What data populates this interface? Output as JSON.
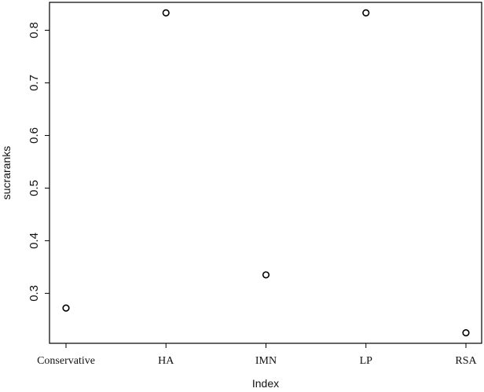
{
  "chart_data": {
    "type": "scatter",
    "xlabel": "Index",
    "ylabel": "sucraranks",
    "categories": [
      "Conservative",
      "HA",
      "IMN",
      "LP",
      "RSA"
    ],
    "values": [
      0.272,
      0.833,
      0.335,
      0.833,
      0.225
    ],
    "yticks": [
      "0.3",
      "0.4",
      "0.5",
      "0.6",
      "0.7",
      "0.8"
    ],
    "ylim": [
      0.205,
      0.853
    ],
    "grid": false,
    "marker": "open-circle",
    "colors": {
      "axis": "#000000",
      "marker": "#000000",
      "text": "#111111"
    }
  }
}
